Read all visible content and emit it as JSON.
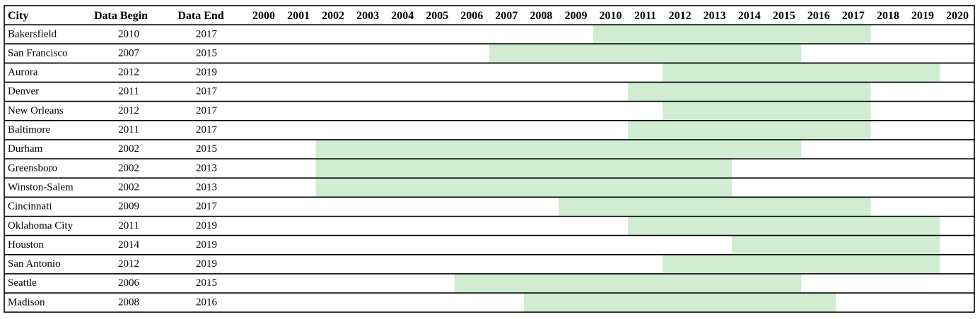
{
  "chart_data": {
    "type": "table",
    "columns": {
      "city": "City",
      "begin": "Data Begin",
      "end": "Data End"
    },
    "years": [
      "2000",
      "2001",
      "2002",
      "2003",
      "2004",
      "2005",
      "2006",
      "2007",
      "2008",
      "2009",
      "2010",
      "2011",
      "2012",
      "2013",
      "2014",
      "2015",
      "2016",
      "2017",
      "2018",
      "2019",
      "2020"
    ],
    "rows": [
      {
        "city": "Bakersfield",
        "begin": "2010",
        "end": "2017"
      },
      {
        "city": "San Francisco",
        "begin": "2007",
        "end": "2015"
      },
      {
        "city": "Aurora",
        "begin": "2012",
        "end": "2019"
      },
      {
        "city": "Denver",
        "begin": "2011",
        "end": "2017"
      },
      {
        "city": "New Orleans",
        "begin": "2012",
        "end": "2017"
      },
      {
        "city": "Baltimore",
        "begin": "2011",
        "end": "2017"
      },
      {
        "city": "Durham",
        "begin": "2002",
        "end": "2015"
      },
      {
        "city": "Greensboro",
        "begin": "2002",
        "end": "2013"
      },
      {
        "city": "Winston-Salem",
        "begin": "2002",
        "end": "2013"
      },
      {
        "city": "Cincinnati",
        "begin": "2009",
        "end": "2017"
      },
      {
        "city": "Oklahoma City",
        "begin": "2011",
        "end": "2019"
      },
      {
        "city": "Houston",
        "begin": "2014",
        "end": "2019"
      },
      {
        "city": "San Antonio",
        "begin": "2012",
        "end": "2019"
      },
      {
        "city": "Seattle",
        "begin": "2006",
        "end": "2015"
      },
      {
        "city": "Madison",
        "begin": "2008",
        "end": "2016"
      }
    ],
    "bar_color": "#d0ecd1",
    "border_color": "#000000"
  }
}
